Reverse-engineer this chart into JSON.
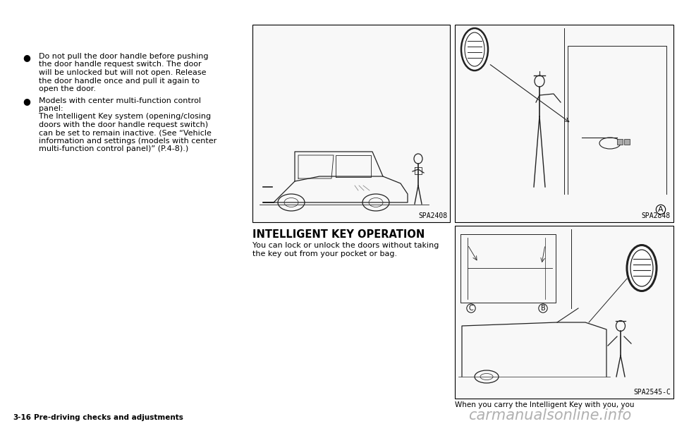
{
  "background_color": "#ffffff",
  "page_width": 9.6,
  "page_height": 6.11,
  "dpi": 100,
  "bullet_text_1_line1": "Do not pull the door handle before pushing",
  "bullet_text_1_line2": "the door handle request switch. The door",
  "bullet_text_1_line3": "will be unlocked but will not open. Release",
  "bullet_text_1_line4": "the door handle once and pull it again to",
  "bullet_text_1_line5": "open the door.",
  "bullet_text_2_line1": "Models with center multi-function control",
  "bullet_text_2_line2": "panel:",
  "bullet_text_2_line3": "The Intelligent Key system (opening/closing",
  "bullet_text_2_line4": "doors with the door handle request switch)",
  "bullet_text_2_line5": "can be set to remain inactive. (See “Vehicle",
  "bullet_text_2_line6": "information and settings (models with center",
  "bullet_text_2_line7": "multi-function control panel)” (P.4-8).)",
  "section_heading": "INTELLIGENT KEY OPERATION",
  "section_body_line1": "You can lock or unlock the doors without taking",
  "section_body_line2": "the key out from your pocket or bag.",
  "img1_label": "SPA2408",
  "img2_label": "SPA2848",
  "img3_label": "SPA2545-C",
  "footer_left_bold": "3-16",
  "footer_left_normal": "Pre-driving checks and adjustments",
  "footer_right": "When you carry the Intelligent Key with you, you",
  "watermark": "carmanualsonline.info",
  "text_color": "#000000",
  "border_color": "#000000",
  "light_gray": "#e8e8e8",
  "sketch_color": "#333333",
  "watermark_color": "#b0b0b0",
  "bullet_font_size": 8.0,
  "heading_font_size": 10.5,
  "body_font_size": 8.0,
  "footer_font_size": 7.5,
  "label_font_size": 7.0,
  "watermark_font_size": 15
}
